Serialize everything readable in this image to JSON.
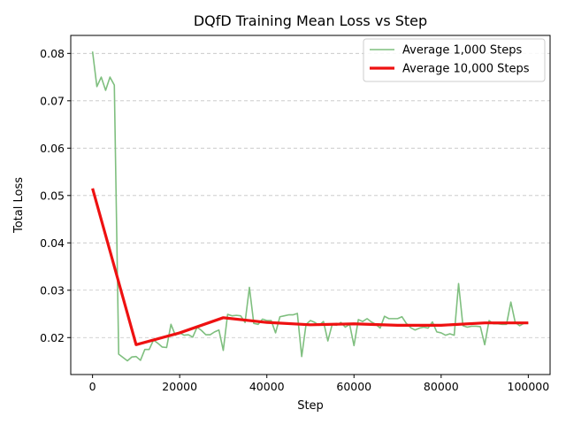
{
  "chart_data": {
    "type": "line",
    "title": "DQfD Training Mean Loss vs Step",
    "xlabel": "Step",
    "ylabel": "Total Loss",
    "xlim": [
      -5000,
      105000
    ],
    "ylim": [
      0.0122,
      0.0838
    ],
    "xticks": [
      0,
      20000,
      40000,
      60000,
      80000,
      100000
    ],
    "xtick_labels": [
      "0",
      "20000",
      "40000",
      "60000",
      "80000",
      "100000"
    ],
    "yticks": [
      0.02,
      0.03,
      0.04,
      0.05,
      0.06,
      0.07,
      0.08
    ],
    "ytick_labels": [
      "0.02",
      "0.03",
      "0.04",
      "0.05",
      "0.06",
      "0.07",
      "0.08"
    ],
    "grid": "y-dashed",
    "legend_position": "top-right",
    "series": [
      {
        "name": "Average 1,000 Steps",
        "color": "#7fbf7f",
        "x": [
          0,
          1000,
          2000,
          3000,
          4000,
          5000,
          6000,
          7000,
          8000,
          9000,
          10000,
          11000,
          12000,
          13000,
          14000,
          15000,
          16000,
          17000,
          18000,
          19000,
          20000,
          21000,
          22000,
          23000,
          24000,
          25000,
          26000,
          27000,
          28000,
          29000,
          30000,
          31000,
          32000,
          33000,
          34000,
          35000,
          36000,
          37000,
          38000,
          39000,
          40000,
          41000,
          42000,
          43000,
          44000,
          45000,
          46000,
          47000,
          48000,
          49000,
          50000,
          51000,
          52000,
          53000,
          54000,
          55000,
          56000,
          57000,
          58000,
          59000,
          60000,
          61000,
          62000,
          63000,
          64000,
          65000,
          66000,
          67000,
          68000,
          69000,
          70000,
          71000,
          72000,
          73000,
          74000,
          75000,
          76000,
          77000,
          78000,
          79000,
          80000,
          81000,
          82000,
          83000,
          84000,
          85000,
          86000,
          87000,
          88000,
          89000,
          90000,
          91000,
          92000,
          93000,
          94000,
          95000,
          96000,
          97000,
          98000,
          99000,
          100000
        ],
        "y": [
          0.0804,
          0.073,
          0.075,
          0.0722,
          0.075,
          0.0733,
          0.0165,
          0.0158,
          0.0151,
          0.0159,
          0.016,
          0.0152,
          0.0175,
          0.0175,
          0.0195,
          0.0188,
          0.018,
          0.0179,
          0.0228,
          0.0205,
          0.021,
          0.0205,
          0.0206,
          0.0201,
          0.0222,
          0.0215,
          0.0206,
          0.0206,
          0.0212,
          0.0216,
          0.0173,
          0.0249,
          0.0246,
          0.0247,
          0.0246,
          0.0232,
          0.0306,
          0.023,
          0.0228,
          0.0239,
          0.0236,
          0.0236,
          0.021,
          0.0244,
          0.0246,
          0.0248,
          0.0248,
          0.0251,
          0.016,
          0.0228,
          0.0236,
          0.0232,
          0.0226,
          0.0234,
          0.0193,
          0.0228,
          0.0226,
          0.0232,
          0.0222,
          0.0228,
          0.0183,
          0.0238,
          0.0234,
          0.024,
          0.0233,
          0.0228,
          0.022,
          0.0245,
          0.024,
          0.024,
          0.024,
          0.0244,
          0.023,
          0.0221,
          0.0216,
          0.022,
          0.0222,
          0.022,
          0.0233,
          0.0212,
          0.021,
          0.0205,
          0.0208,
          0.0205,
          0.0314,
          0.0225,
          0.0222,
          0.0224,
          0.0224,
          0.0223,
          0.0185,
          0.0236,
          0.0229,
          0.0229,
          0.0228,
          0.0228,
          0.0275,
          0.0232,
          0.0225,
          0.023,
          0.023
        ]
      },
      {
        "name": "Average 10,000 Steps",
        "color": "#ee1111",
        "x": [
          0,
          10000,
          20000,
          30000,
          40000,
          50000,
          60000,
          70000,
          80000,
          90000,
          100000
        ],
        "y": [
          0.0515,
          0.0185,
          0.021,
          0.0242,
          0.0232,
          0.0227,
          0.0229,
          0.0226,
          0.0226,
          0.0231,
          0.0231
        ]
      }
    ]
  }
}
